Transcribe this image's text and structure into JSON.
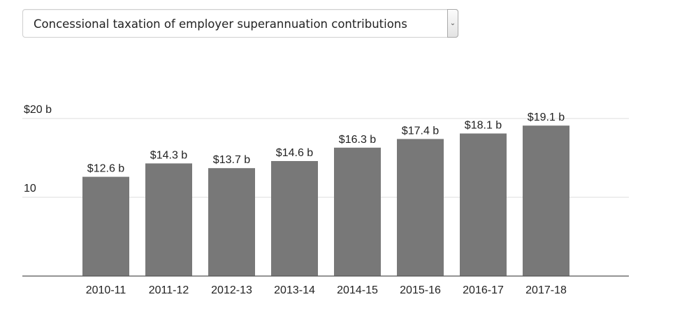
{
  "dropdown": {
    "selected": "Concessional taxation of employer superannuation contributions",
    "arrow_icon": "chevron-down-icon"
  },
  "chart_data": {
    "type": "bar",
    "categories": [
      "2010-11",
      "2011-12",
      "2012-13",
      "2013-14",
      "2014-15",
      "2015-16",
      "2016-17",
      "2017-18"
    ],
    "values": [
      12.6,
      14.3,
      13.7,
      14.6,
      16.3,
      17.4,
      18.1,
      19.1
    ],
    "data_labels": [
      "$12.6 b",
      "$14.3 b",
      "$13.7 b",
      "$14.6 b",
      "$16.3 b",
      "$17.4 b",
      "$18.1 b",
      "$19.1 b"
    ],
    "yticks": [
      {
        "value": 20,
        "label": "$20 b"
      },
      {
        "value": 10,
        "label": "10"
      }
    ],
    "ylim": [
      0,
      20
    ],
    "grid": true,
    "colors": {
      "bar": "#787878",
      "grid": "#dcdcdc",
      "axis": "#555555"
    }
  }
}
